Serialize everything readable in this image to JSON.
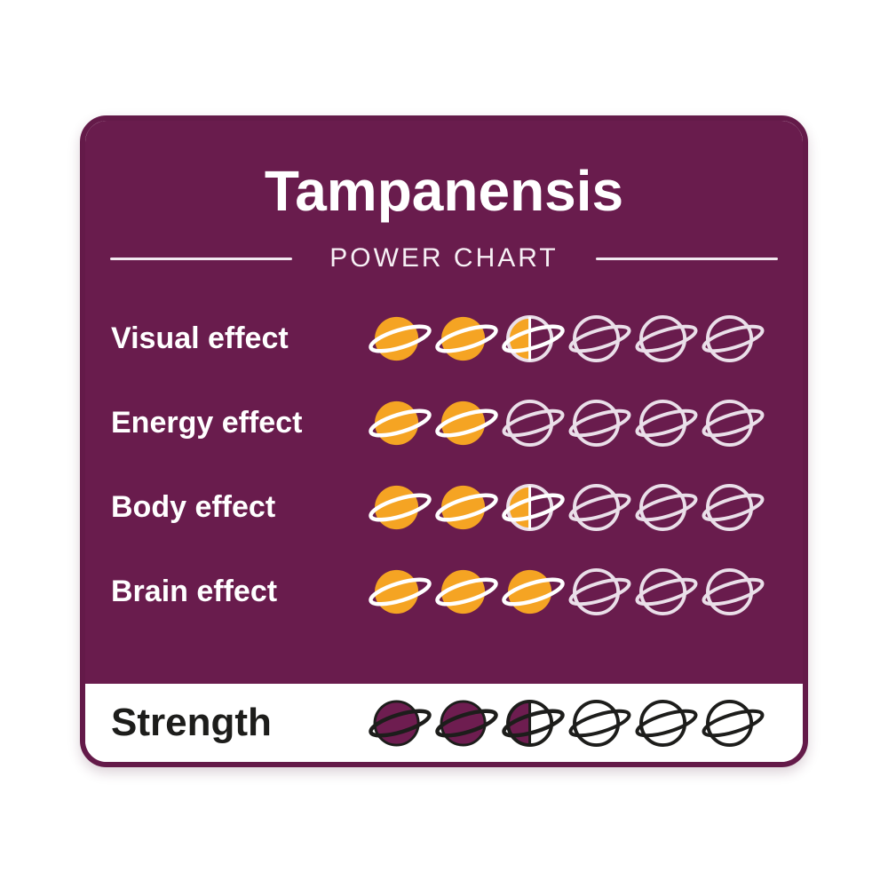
{
  "page": {
    "background": "#FFFFFF"
  },
  "card": {
    "title": "Tampanensis",
    "subtitle": "POWER CHART",
    "max_score": 6,
    "rows": [
      {
        "label": "Visual effect",
        "value": 2.5,
        "variant": "effect"
      },
      {
        "label": "Energy effect",
        "value": 2,
        "variant": "effect"
      },
      {
        "label": "Body effect",
        "value": 2.5,
        "variant": "effect"
      },
      {
        "label": "Brain effect",
        "value": 3,
        "variant": "effect"
      },
      {
        "label": "Strength",
        "value": 2.5,
        "variant": "strength"
      }
    ],
    "colors": {
      "card_purple": "#691C4D",
      "border_purple": "#641A49",
      "planet_orange": "#F5A423",
      "planet_outline_light": "#EADFE9",
      "ring_white": "#FFFFFF",
      "strength_fill_purple": "#6E1D50",
      "ink_black": "#1D1D1B",
      "band_white": "#FFFFFF"
    }
  },
  "chart_data": {
    "type": "bar",
    "title": "Tampanensis",
    "subtitle": "POWER CHART",
    "categories": [
      "Visual effect",
      "Energy effect",
      "Body effect",
      "Brain effect",
      "Strength"
    ],
    "values": [
      2.5,
      2,
      2.5,
      3,
      2.5
    ],
    "ylim": [
      0,
      6
    ],
    "unit": "planets (out of 6)",
    "icon": "saturn-planet-icon",
    "legend_position": "none",
    "grid": false
  }
}
